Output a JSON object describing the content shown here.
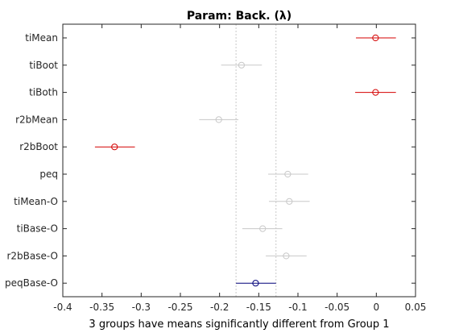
{
  "chart_data": {
    "type": "scatter",
    "title": "Param: Back. (λ)",
    "xlabel": "3 groups have means significantly different from Group 1",
    "ylabel": "",
    "xlim": [
      -0.4,
      0.05
    ],
    "xticks": [
      "-0.4",
      "-0.35",
      "-0.3",
      "-0.25",
      "-0.2",
      "-0.15",
      "-0.1",
      "-0.05",
      "0",
      "0.05"
    ],
    "xtick_values": [
      -0.4,
      -0.35,
      -0.3,
      -0.25,
      -0.2,
      -0.15,
      -0.1,
      -0.05,
      0,
      0.05
    ],
    "grid": false,
    "reference_lines": [
      -0.179,
      -0.128
    ],
    "groups": [
      {
        "label": "tiMean",
        "mean": -0.001,
        "low": -0.026,
        "high": 0.025,
        "status": "different"
      },
      {
        "label": "tiBoot",
        "mean": -0.172,
        "low": -0.198,
        "high": -0.146,
        "status": "not-different"
      },
      {
        "label": "tiBoth",
        "mean": -0.001,
        "low": -0.027,
        "high": 0.025,
        "status": "different"
      },
      {
        "label": "r2bMean",
        "mean": -0.201,
        "low": -0.226,
        "high": -0.176,
        "status": "not-different"
      },
      {
        "label": "r2bBoot",
        "mean": -0.334,
        "low": -0.359,
        "high": -0.308,
        "status": "different"
      },
      {
        "label": "peq",
        "mean": -0.113,
        "low": -0.138,
        "high": -0.087,
        "status": "not-different"
      },
      {
        "label": "tiMean-O",
        "mean": -0.111,
        "low": -0.137,
        "high": -0.085,
        "status": "not-different"
      },
      {
        "label": "tiBase-O",
        "mean": -0.145,
        "low": -0.171,
        "high": -0.12,
        "status": "not-different"
      },
      {
        "label": "r2bBase-O",
        "mean": -0.115,
        "low": -0.141,
        "high": -0.089,
        "status": "not-different"
      },
      {
        "label": "peqBase-O",
        "mean": -0.154,
        "low": -0.179,
        "high": -0.128,
        "status": "selected"
      }
    ],
    "colors": {
      "different": "#d40000",
      "not-different": "#c8c8c8",
      "selected": "#00007a",
      "axis": "#262626",
      "reference_line": "#c8c8c8"
    }
  }
}
